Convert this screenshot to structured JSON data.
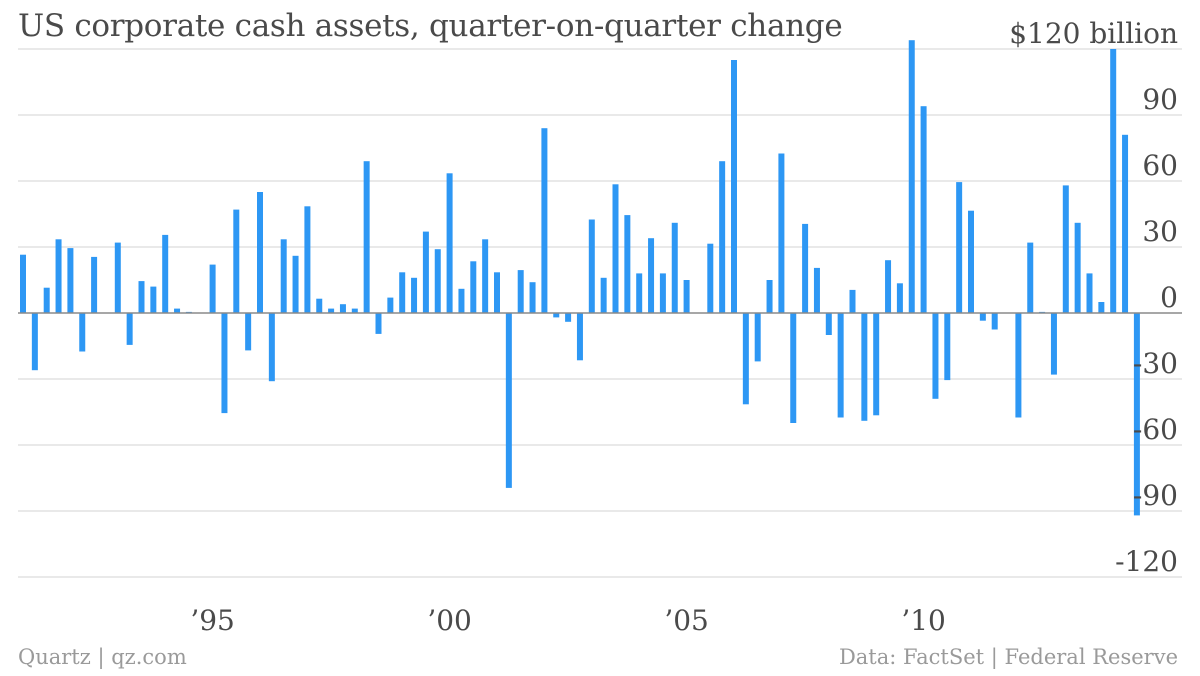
{
  "chart_data": {
    "type": "bar",
    "title": "US corporate cash assets, quarter-on-quarter change",
    "y_unit_prefix": "$",
    "y_unit_suffix": " billion",
    "ylim": [
      -120,
      120
    ],
    "y_ticks": [
      120,
      90,
      60,
      30,
      0,
      -30,
      -60,
      -90,
      -120
    ],
    "y_tick_labels": [
      "$120 billion",
      "90",
      "60",
      "30",
      "0",
      "-30",
      "-60",
      "-90",
      "-120"
    ],
    "x_ticks": [
      1995,
      2000,
      2005,
      2010
    ],
    "x_tick_labels": [
      "’95",
      "’00",
      "’05",
      "’10"
    ],
    "x_start": "1991Q1",
    "x": [
      "1991Q1",
      "1991Q2",
      "1991Q3",
      "1991Q4",
      "1992Q1",
      "1992Q2",
      "1992Q3",
      "1992Q4",
      "1993Q1",
      "1993Q2",
      "1993Q3",
      "1993Q4",
      "1994Q1",
      "1994Q2",
      "1994Q3",
      "1994Q4",
      "1995Q1",
      "1995Q2",
      "1995Q3",
      "1995Q4",
      "1996Q1",
      "1996Q2",
      "1996Q3",
      "1996Q4",
      "1997Q1",
      "1997Q2",
      "1997Q3",
      "1997Q4",
      "1998Q1",
      "1998Q2",
      "1998Q3",
      "1998Q4",
      "1999Q1",
      "1999Q2",
      "1999Q3",
      "1999Q4",
      "2000Q1",
      "2000Q2",
      "2000Q3",
      "2000Q4",
      "2001Q1",
      "2001Q2",
      "2001Q3",
      "2001Q4",
      "2002Q1",
      "2002Q2",
      "2002Q3",
      "2002Q4",
      "2003Q1",
      "2003Q2",
      "2003Q3",
      "2003Q4",
      "2004Q1",
      "2004Q2",
      "2004Q3",
      "2004Q4",
      "2005Q1",
      "2005Q2",
      "2005Q3",
      "2005Q4",
      "2006Q1",
      "2006Q2",
      "2006Q3",
      "2006Q4",
      "2007Q1",
      "2007Q2",
      "2007Q3",
      "2007Q4",
      "2008Q1",
      "2008Q2",
      "2008Q3",
      "2008Q4",
      "2009Q1",
      "2009Q2",
      "2009Q3",
      "2009Q4",
      "2010Q1",
      "2010Q2",
      "2010Q3",
      "2010Q4",
      "2011Q1",
      "2011Q2",
      "2011Q3",
      "2011Q4",
      "2012Q1",
      "2012Q2",
      "2012Q3",
      "2012Q4",
      "2013Q1",
      "2013Q2",
      "2013Q3",
      "2013Q4",
      "2014Q1",
      "2014Q2",
      "2014Q3"
    ],
    "values": [
      26.5,
      -26,
      11.5,
      33.5,
      29.5,
      -17.5,
      25.5,
      0,
      32,
      -14.5,
      14.5,
      12,
      35.5,
      2,
      0.5,
      0,
      22,
      -45.5,
      47,
      -17,
      55,
      -31,
      33.5,
      26,
      48.5,
      6.5,
      2,
      4,
      2,
      69,
      -9.5,
      7,
      18.5,
      16,
      37,
      29,
      63.5,
      11,
      23.5,
      33.5,
      18.5,
      -79.5,
      19.5,
      14,
      84,
      -2,
      -4,
      -21.5,
      42.5,
      16,
      58.5,
      44.5,
      18,
      34,
      18,
      41,
      15,
      0,
      31.5,
      69,
      115,
      -41.5,
      -22,
      15,
      72.5,
      -50,
      40.5,
      20.5,
      -10,
      -47.5,
      10.5,
      -49,
      -46.5,
      24,
      13.5,
      124,
      94,
      -39,
      -30.5,
      59.5,
      46.5,
      -3.5,
      -7.5,
      0,
      -47.5,
      32,
      0.5,
      -28,
      58,
      41,
      18,
      5,
      120,
      81,
      -92
    ]
  },
  "footer": {
    "source_left": "Quartz | qz.com",
    "source_right": "Data: FactSet | Federal Reserve"
  }
}
